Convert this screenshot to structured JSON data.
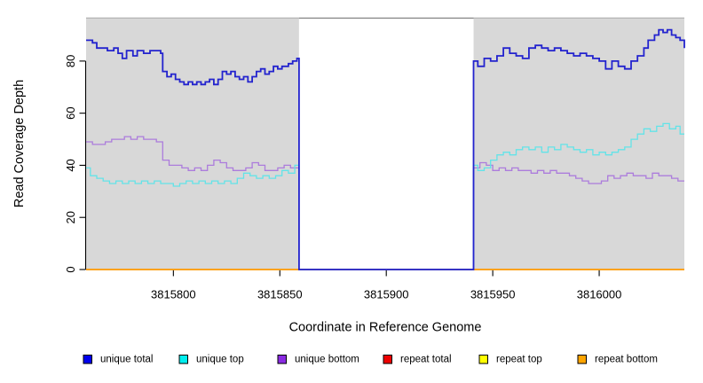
{
  "chart_data": {
    "type": "line",
    "subtype": "step",
    "title": "",
    "xlabel": "Coordinate in Reference Genome",
    "ylabel": "Read Coverage Depth",
    "xlim": [
      3815759,
      3816040
    ],
    "ylim": [
      0,
      96.7
    ],
    "x_ticks": [
      3815800,
      3815850,
      3815900,
      3815950,
      3816000
    ],
    "y_ticks": [
      0,
      20,
      40,
      60,
      80
    ],
    "grid": false,
    "plot_bg": "#ffffff",
    "shaded_region_color": "#d8d8d8",
    "shaded_region_cap_color": "#b5b5b5",
    "shaded_regions": [
      [
        3815759,
        3815859
      ],
      [
        3815941,
        3816040
      ]
    ],
    "gap_region": [
      3815859,
      3815941
    ],
    "gap_top_border_color": "#8a8a8a",
    "axis_color": "#000000",
    "legend": {
      "position": "bottom",
      "items": [
        {
          "label": "unique total",
          "color": "#0000EE"
        },
        {
          "label": "unique top",
          "color": "#00EEEE"
        },
        {
          "label": "unique bottom",
          "color": "#8A2BE2"
        },
        {
          "label": "repeat total",
          "color": "#EE0000"
        },
        {
          "label": "repeat top",
          "color": "#FFFF00"
        },
        {
          "label": "repeat bottom",
          "color": "#FFA500"
        }
      ]
    },
    "series": [
      {
        "name": "repeat total",
        "color": "#EE0000",
        "line_color": "#DD0000",
        "line_width": 1.4,
        "points": [
          [
            3815759,
            0
          ],
          [
            3816040,
            0
          ]
        ]
      },
      {
        "name": "repeat top",
        "color": "#FFFF00",
        "line_color": "#FFE800",
        "line_width": 1.4,
        "points": [
          [
            3815759,
            0
          ],
          [
            3816040,
            0
          ]
        ]
      },
      {
        "name": "repeat bottom",
        "color": "#FFA500",
        "line_color": "#FFA013",
        "line_width": 1.6,
        "points": [
          [
            3815759,
            0
          ],
          [
            3816040,
            0
          ]
        ]
      },
      {
        "name": "unique bottom",
        "color": "#8A2BE2",
        "line_color": "#AC7CDC",
        "line_width": 1.3,
        "points": [
          [
            3815759,
            49
          ],
          [
            3815762,
            48
          ],
          [
            3815765,
            48
          ],
          [
            3815768,
            49
          ],
          [
            3815771,
            50
          ],
          [
            3815774,
            50
          ],
          [
            3815777,
            51
          ],
          [
            3815780,
            50
          ],
          [
            3815783,
            51
          ],
          [
            3815786,
            50
          ],
          [
            3815789,
            50
          ],
          [
            3815792,
            49
          ],
          [
            3815795,
            42
          ],
          [
            3815798,
            40
          ],
          [
            3815801,
            40
          ],
          [
            3815804,
            39
          ],
          [
            3815807,
            38
          ],
          [
            3815810,
            39
          ],
          [
            3815813,
            38
          ],
          [
            3815816,
            40
          ],
          [
            3815819,
            42
          ],
          [
            3815822,
            41
          ],
          [
            3815825,
            39
          ],
          [
            3815828,
            38
          ],
          [
            3815831,
            38
          ],
          [
            3815834,
            39
          ],
          [
            3815837,
            41
          ],
          [
            3815840,
            40
          ],
          [
            3815843,
            38
          ],
          [
            3815846,
            38
          ],
          [
            3815849,
            39
          ],
          [
            3815852,
            40
          ],
          [
            3815855,
            39
          ],
          [
            3815857,
            39
          ],
          [
            3815859,
            0
          ],
          [
            3815941,
            39
          ],
          [
            3815944,
            41
          ],
          [
            3815947,
            40
          ],
          [
            3815950,
            38
          ],
          [
            3815953,
            39
          ],
          [
            3815956,
            38
          ],
          [
            3815959,
            39
          ],
          [
            3815962,
            38
          ],
          [
            3815965,
            38
          ],
          [
            3815968,
            37
          ],
          [
            3815971,
            38
          ],
          [
            3815974,
            37
          ],
          [
            3815977,
            38
          ],
          [
            3815980,
            37
          ],
          [
            3815983,
            37
          ],
          [
            3815986,
            36
          ],
          [
            3815989,
            35
          ],
          [
            3815992,
            34
          ],
          [
            3815995,
            33
          ],
          [
            3815998,
            33
          ],
          [
            3816001,
            34
          ],
          [
            3816004,
            36
          ],
          [
            3816007,
            35
          ],
          [
            3816010,
            36
          ],
          [
            3816013,
            37
          ],
          [
            3816016,
            36
          ],
          [
            3816019,
            36
          ],
          [
            3816022,
            35
          ],
          [
            3816025,
            37
          ],
          [
            3816028,
            36
          ],
          [
            3816031,
            36
          ],
          [
            3816034,
            35
          ],
          [
            3816037,
            34
          ],
          [
            3816040,
            34
          ]
        ]
      },
      {
        "name": "unique top",
        "color": "#00EEEE",
        "line_color": "#63E3E8",
        "line_width": 1.3,
        "points": [
          [
            3815759,
            39
          ],
          [
            3815761,
            36
          ],
          [
            3815764,
            35
          ],
          [
            3815767,
            34
          ],
          [
            3815770,
            33
          ],
          [
            3815773,
            34
          ],
          [
            3815776,
            33
          ],
          [
            3815779,
            34
          ],
          [
            3815782,
            33
          ],
          [
            3815785,
            34
          ],
          [
            3815788,
            33
          ],
          [
            3815791,
            34
          ],
          [
            3815794,
            33
          ],
          [
            3815797,
            33
          ],
          [
            3815800,
            32
          ],
          [
            3815803,
            33
          ],
          [
            3815806,
            34
          ],
          [
            3815809,
            33
          ],
          [
            3815812,
            34
          ],
          [
            3815815,
            33
          ],
          [
            3815818,
            34
          ],
          [
            3815821,
            33
          ],
          [
            3815824,
            34
          ],
          [
            3815827,
            33
          ],
          [
            3815830,
            35
          ],
          [
            3815833,
            37
          ],
          [
            3815836,
            36
          ],
          [
            3815839,
            35
          ],
          [
            3815842,
            36
          ],
          [
            3815845,
            35
          ],
          [
            3815848,
            36
          ],
          [
            3815851,
            38
          ],
          [
            3815854,
            37
          ],
          [
            3815857,
            40
          ],
          [
            3815859,
            0
          ],
          [
            3815941,
            40
          ],
          [
            3815943,
            38
          ],
          [
            3815946,
            39
          ],
          [
            3815949,
            42
          ],
          [
            3815952,
            44
          ],
          [
            3815955,
            45
          ],
          [
            3815958,
            44
          ],
          [
            3815961,
            46
          ],
          [
            3815964,
            47
          ],
          [
            3815967,
            46
          ],
          [
            3815970,
            47
          ],
          [
            3815973,
            45
          ],
          [
            3815976,
            47
          ],
          [
            3815979,
            46
          ],
          [
            3815982,
            48
          ],
          [
            3815985,
            47
          ],
          [
            3815988,
            46
          ],
          [
            3815991,
            45
          ],
          [
            3815994,
            46
          ],
          [
            3815997,
            44
          ],
          [
            3816000,
            45
          ],
          [
            3816003,
            44
          ],
          [
            3816006,
            45
          ],
          [
            3816009,
            46
          ],
          [
            3816012,
            47
          ],
          [
            3816015,
            50
          ],
          [
            3816018,
            52
          ],
          [
            3816021,
            54
          ],
          [
            3816024,
            53
          ],
          [
            3816027,
            55
          ],
          [
            3816030,
            56
          ],
          [
            3816033,
            54
          ],
          [
            3816036,
            55
          ],
          [
            3816038,
            52
          ],
          [
            3816040,
            52
          ]
        ]
      },
      {
        "name": "unique total",
        "color": "#0000EE",
        "line_color": "#2323CE",
        "line_width": 1.8,
        "points": [
          [
            3815759,
            88
          ],
          [
            3815762,
            87
          ],
          [
            3815764,
            85
          ],
          [
            3815767,
            85
          ],
          [
            3815769,
            84
          ],
          [
            3815772,
            85
          ],
          [
            3815774,
            83
          ],
          [
            3815776,
            81
          ],
          [
            3815778,
            84
          ],
          [
            3815781,
            82
          ],
          [
            3815783,
            84
          ],
          [
            3815786,
            83
          ],
          [
            3815789,
            84
          ],
          [
            3815792,
            84
          ],
          [
            3815794,
            83
          ],
          [
            3815795,
            76
          ],
          [
            3815797,
            74
          ],
          [
            3815799,
            75
          ],
          [
            3815801,
            73
          ],
          [
            3815803,
            72
          ],
          [
            3815805,
            71
          ],
          [
            3815807,
            72
          ],
          [
            3815809,
            71
          ],
          [
            3815811,
            72
          ],
          [
            3815813,
            71
          ],
          [
            3815815,
            72
          ],
          [
            3815817,
            73
          ],
          [
            3815819,
            71
          ],
          [
            3815821,
            73
          ],
          [
            3815823,
            76
          ],
          [
            3815825,
            75
          ],
          [
            3815827,
            76
          ],
          [
            3815829,
            74
          ],
          [
            3815831,
            73
          ],
          [
            3815833,
            74
          ],
          [
            3815835,
            72
          ],
          [
            3815837,
            74
          ],
          [
            3815839,
            76
          ],
          [
            3815841,
            77
          ],
          [
            3815843,
            75
          ],
          [
            3815845,
            76
          ],
          [
            3815847,
            78
          ],
          [
            3815849,
            77
          ],
          [
            3815851,
            78
          ],
          [
            3815854,
            79
          ],
          [
            3815856,
            80
          ],
          [
            3815858,
            81
          ],
          [
            3815859,
            0
          ],
          [
            3815941,
            80
          ],
          [
            3815943,
            78
          ],
          [
            3815946,
            81
          ],
          [
            3815949,
            80
          ],
          [
            3815952,
            82
          ],
          [
            3815955,
            85
          ],
          [
            3815958,
            83
          ],
          [
            3815961,
            82
          ],
          [
            3815964,
            81
          ],
          [
            3815967,
            85
          ],
          [
            3815970,
            86
          ],
          [
            3815973,
            85
          ],
          [
            3815976,
            84
          ],
          [
            3815979,
            85
          ],
          [
            3815982,
            84
          ],
          [
            3815985,
            83
          ],
          [
            3815988,
            82
          ],
          [
            3815991,
            83
          ],
          [
            3815994,
            82
          ],
          [
            3815997,
            81
          ],
          [
            3816000,
            80
          ],
          [
            3816003,
            77
          ],
          [
            3816006,
            80
          ],
          [
            3816009,
            78
          ],
          [
            3816012,
            77
          ],
          [
            3816015,
            80
          ],
          [
            3816018,
            82
          ],
          [
            3816021,
            85
          ],
          [
            3816023,
            88
          ],
          [
            3816026,
            90
          ],
          [
            3816028,
            92
          ],
          [
            3816030,
            91
          ],
          [
            3816032,
            92
          ],
          [
            3816034,
            90
          ],
          [
            3816036,
            89
          ],
          [
            3816038,
            88
          ],
          [
            3816040,
            85
          ]
        ]
      }
    ]
  }
}
